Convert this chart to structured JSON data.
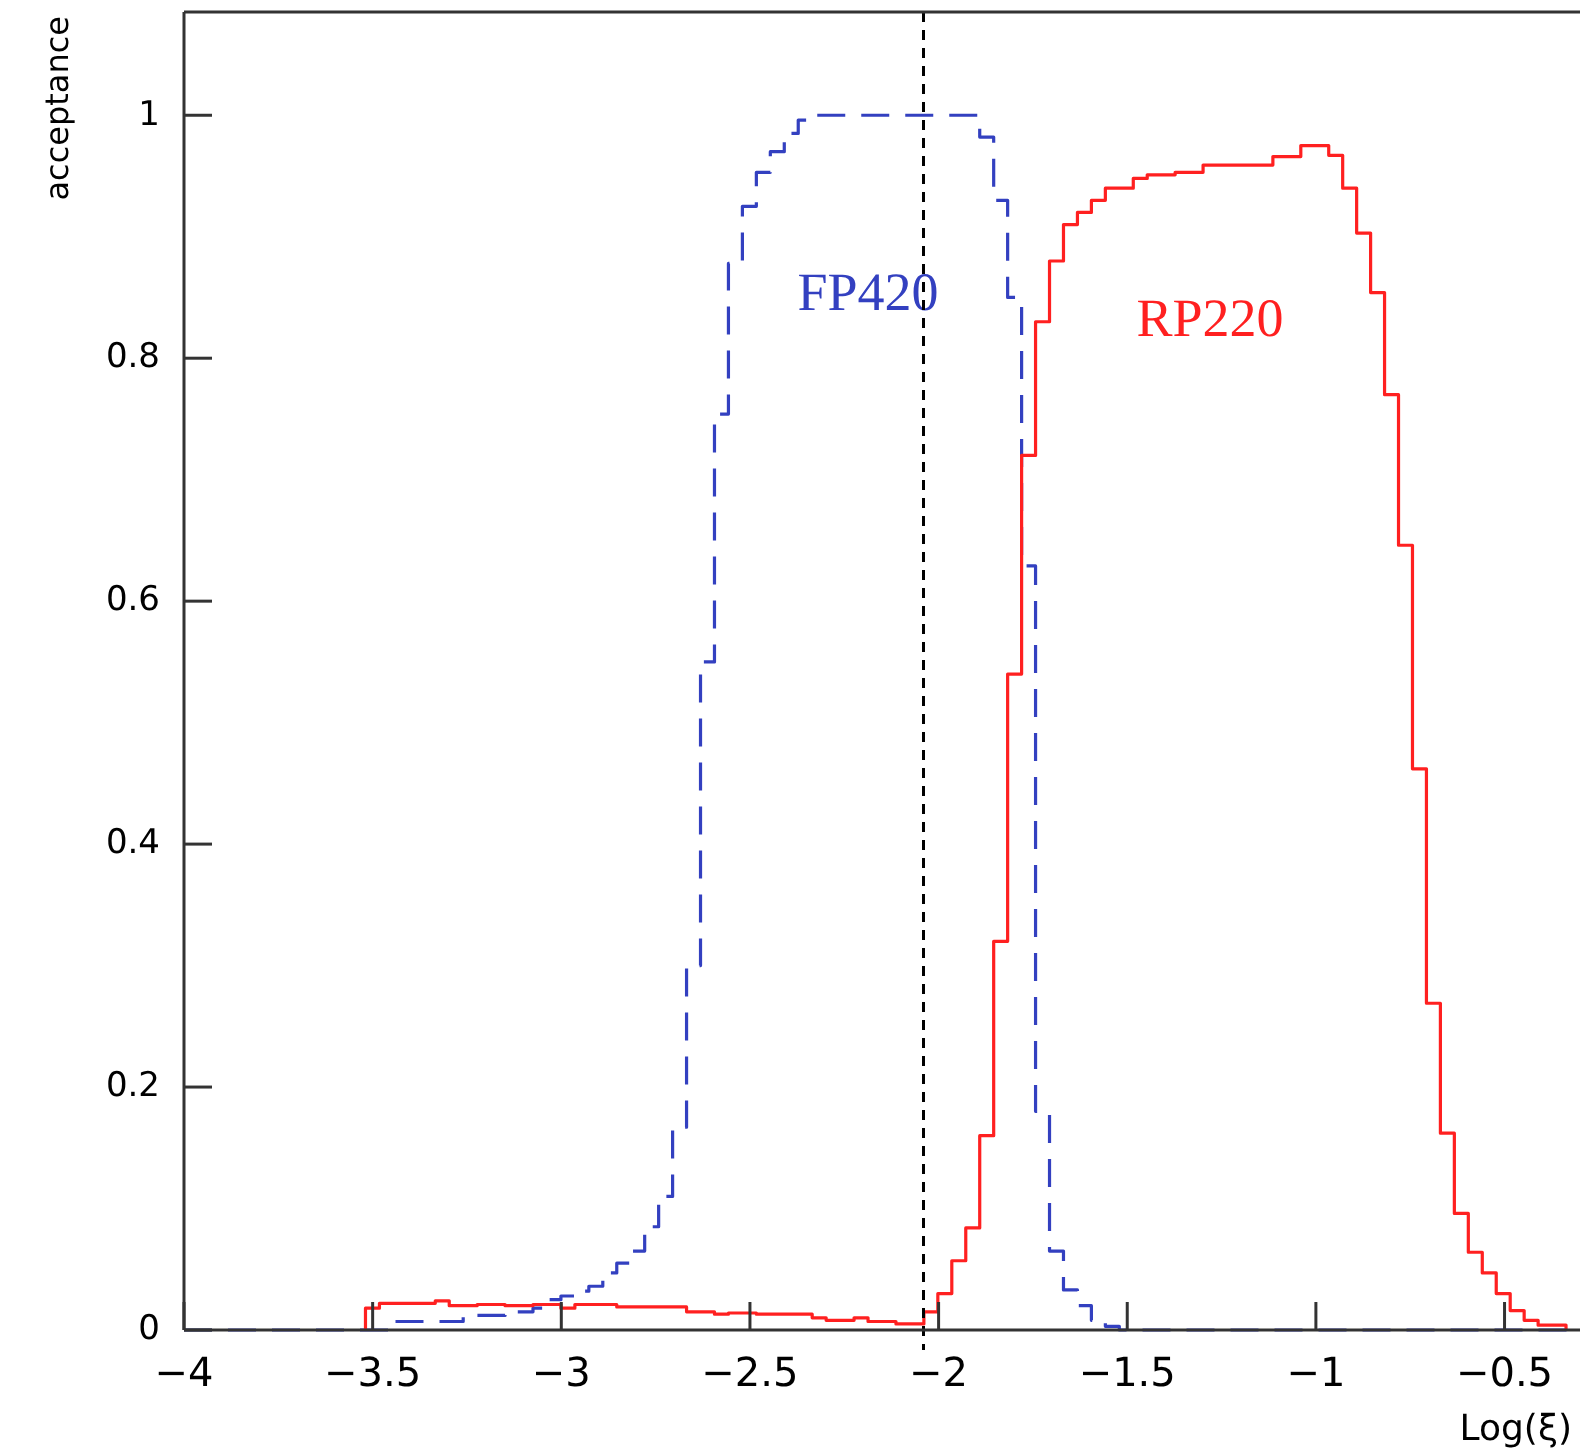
{
  "chart_data": {
    "type": "histogram",
    "xlabel": "Log(ξ)",
    "ylabel": "acceptance",
    "bins": [
      -4,
      -3.963,
      -3.926,
      -3.889,
      -3.852,
      -3.815,
      -3.778,
      -3.741,
      -3.704,
      -3.667,
      -3.63,
      -3.593,
      -3.556,
      -3.519,
      -3.482,
      -3.445,
      -3.408,
      -3.371,
      -3.334,
      -3.297,
      -3.26,
      -3.223,
      -3.186,
      -3.149,
      -3.112,
      -3.075,
      -3.038,
      -3.001,
      -2.964,
      -2.927,
      -2.89,
      -2.853,
      -2.816,
      -2.779,
      -2.742,
      -2.705,
      -2.668,
      -2.631,
      -2.594,
      -2.557,
      -2.52,
      -2.483,
      -2.446,
      -2.409,
      -2.372,
      -2.335,
      -2.298,
      -2.261,
      -2.224,
      -2.187,
      -2.15,
      -2.113,
      -2.076,
      -2.039,
      -2.002,
      -1.965,
      -1.928,
      -1.891,
      -1.854,
      -1.817,
      -1.78,
      -1.743,
      -1.706,
      -1.669,
      -1.632,
      -1.595,
      -1.558,
      -1.521,
      -1.484,
      -1.447,
      -1.41,
      -1.373,
      -1.336,
      -1.299,
      -1.262,
      -1.225,
      -1.188,
      -1.151,
      -1.114,
      -1.077,
      -1.04,
      -1.003,
      -0.966,
      -0.929,
      -0.892,
      -0.855,
      -0.818,
      -0.781,
      -0.744,
      -0.707,
      -0.67,
      -0.633,
      -0.596,
      -0.559,
      -0.522,
      -0.485,
      -0.448,
      -0.411,
      -0.374,
      -0.337,
      -0.3
    ],
    "series": [
      {
        "name": "FP420",
        "color": "#3340c0",
        "line_style": "dashed",
        "values": [
          0,
          0,
          0,
          0,
          0,
          0,
          0,
          0,
          0,
          0,
          0,
          0,
          0,
          0,
          0,
          0.007,
          0.007,
          0.007,
          0.007,
          0.007,
          0.012,
          0.012,
          0.012,
          0.015,
          0.015,
          0.018,
          0.025,
          0.028,
          0.032,
          0.036,
          0.047,
          0.055,
          0.065,
          0.085,
          0.11,
          0.167,
          0.3,
          0.55,
          0.754,
          0.878,
          0.925,
          0.953,
          0.97,
          0.985,
          0.996,
          1,
          1,
          1,
          1,
          1,
          1,
          1,
          1,
          1,
          1,
          1,
          1,
          0.982,
          0.93,
          0.85,
          0.629,
          0.18,
          0.065,
          0.033,
          0.02,
          0.008,
          0.003,
          0,
          0,
          0,
          0,
          0,
          0,
          0,
          0,
          0,
          0,
          0,
          0,
          0,
          0,
          0,
          0,
          0,
          0,
          0,
          0,
          0,
          0,
          0,
          0,
          0,
          0,
          0,
          0,
          0,
          0,
          0,
          0,
          0
        ]
      },
      {
        "name": "RP220",
        "color": "#ff2020",
        "line_style": "solid",
        "bins": [
          -3.519,
          -3.482,
          -3.445,
          -3.408,
          -3.371,
          -3.334,
          -3.297,
          -3.26,
          -3.223,
          -3.186,
          -3.149,
          -3.112,
          -3.075,
          -3.038,
          -3.001,
          -2.964,
          -2.927,
          -2.89,
          -2.853,
          -2.816,
          -2.779,
          -2.742,
          -2.705,
          -2.668,
          -2.631,
          -2.594,
          -2.557,
          -2.52,
          -2.483,
          -2.446,
          -2.409,
          -2.372,
          -2.335,
          -2.298,
          -2.261,
          -2.224,
          -2.187,
          -2.15,
          -2.113,
          -2.076,
          -2.039,
          -2.002,
          -1.965,
          -1.928,
          -1.891,
          -1.854,
          -1.817,
          -1.78,
          -1.743,
          -1.706,
          -1.669,
          -1.632,
          -1.595,
          -1.558,
          -1.521,
          -1.484,
          -1.447,
          -1.41,
          -1.373,
          -1.336,
          -1.299,
          -1.262,
          -1.225,
          -1.188,
          -1.151,
          -1.114,
          -1.077,
          -1.04,
          -1.003,
          -0.966,
          -0.929,
          -0.892,
          -0.855,
          -0.818,
          -0.781,
          -0.744,
          -0.707,
          -0.67,
          -0.633,
          -0.596,
          -0.559,
          -0.522,
          -0.485,
          -0.448,
          -0.411,
          -0.374,
          -0.337
        ],
        "values": [
          0.018,
          0.022,
          0.022,
          0.022,
          0.022,
          0.024,
          0.02,
          0.02,
          0.021,
          0.021,
          0.02,
          0.02,
          0.021,
          0.021,
          0.018,
          0.021,
          0.021,
          0.021,
          0.019,
          0.019,
          0.019,
          0.019,
          0.019,
          0.015,
          0.015,
          0.013,
          0.014,
          0.014,
          0.013,
          0.013,
          0.013,
          0.013,
          0.01,
          0.008,
          0.008,
          0.01,
          0.007,
          0.007,
          0.005,
          0.005,
          0.015,
          0.03,
          0.057,
          0.084,
          0.16,
          0.32,
          0.54,
          0.72,
          0.83,
          0.88,
          0.91,
          0.92,
          0.93,
          0.94,
          0.94,
          0.948,
          0.951,
          0.951,
          0.953,
          0.953,
          0.959,
          0.959,
          0.959,
          0.959,
          0.959,
          0.966,
          0.966,
          0.975,
          0.975,
          0.967,
          0.94,
          0.903,
          0.854,
          0.77,
          0.646,
          0.462,
          0.269,
          0.162,
          0.096,
          0.064,
          0.047,
          0.03,
          0.016,
          0.008,
          0.004,
          0.004
        ]
      }
    ],
    "xlim": [
      -4,
      -0.3
    ],
    "xticks": [
      {
        "value": -4,
        "label": "−4"
      },
      {
        "value": -3.5,
        "label": "−3.5"
      },
      {
        "value": -3,
        "label": "−3"
      },
      {
        "value": -2.5,
        "label": "−2.5"
      },
      {
        "value": -2,
        "label": "−2"
      },
      {
        "value": -1.5,
        "label": "−1.5"
      },
      {
        "value": -1,
        "label": "−1"
      },
      {
        "value": -0.5,
        "label": "−0.5"
      }
    ],
    "ylim": [
      0,
      1.085
    ],
    "yticks": [
      0,
      0.2,
      0.4,
      0.6,
      0.8,
      1
    ],
    "ref_lines": [
      {
        "axis": "x",
        "value": -2.04,
        "color": "#000000",
        "line_style": "dashed"
      }
    ],
    "grid": false
  }
}
